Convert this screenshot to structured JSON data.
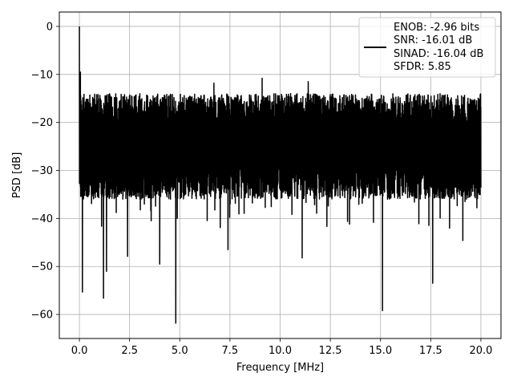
{
  "chart_data": {
    "type": "line",
    "xlabel": "Frequency [MHz]",
    "ylabel": "PSD [dB]",
    "xlim": [
      -1.0,
      21.0
    ],
    "ylim": [
      -65,
      3
    ],
    "x_ticks": [
      0.0,
      2.5,
      5.0,
      7.5,
      10.0,
      12.5,
      15.0,
      17.5,
      20.0
    ],
    "x_tick_labels": [
      "0.0",
      "2.5",
      "5.0",
      "7.5",
      "10.0",
      "12.5",
      "15.0",
      "17.5",
      "20.0"
    ],
    "y_ticks": [
      0,
      -10,
      -20,
      -30,
      -40,
      -50,
      -60
    ],
    "y_tick_labels": [
      "0",
      "−10",
      "−20",
      "−30",
      "−40",
      "−50",
      "−60"
    ],
    "grid": true,
    "legend": {
      "placement": "top-right",
      "entries": [
        "ENOB: -2.96 bits",
        "SNR: -16.01 dB",
        "SINAD: -16.04 dB",
        "SFDR: 5.85"
      ]
    },
    "series": [
      {
        "color": "#000000",
        "x_range": [
          0.0,
          20.0
        ],
        "typical_band_db": [
          -36,
          -14
        ],
        "peaks": [
          {
            "x": 0.0,
            "y": 0.0
          },
          {
            "x": 0.05,
            "y": -9.5
          },
          {
            "x": 1.2,
            "y": -12.8
          },
          {
            "x": 6.7,
            "y": -11.8
          },
          {
            "x": 9.1,
            "y": -10.8
          },
          {
            "x": 11.4,
            "y": -11.5
          }
        ],
        "dips": [
          {
            "x": 0.15,
            "y": -55.3
          },
          {
            "x": 1.2,
            "y": -56.6
          },
          {
            "x": 1.35,
            "y": -51.0
          },
          {
            "x": 2.4,
            "y": -47.9
          },
          {
            "x": 4.0,
            "y": -49.5
          },
          {
            "x": 4.8,
            "y": -61.8
          },
          {
            "x": 7.4,
            "y": -46.5
          },
          {
            "x": 11.1,
            "y": -48.2
          },
          {
            "x": 15.1,
            "y": -59.2
          },
          {
            "x": 17.6,
            "y": -53.5
          },
          {
            "x": 19.1,
            "y": -44.6
          }
        ]
      }
    ]
  }
}
